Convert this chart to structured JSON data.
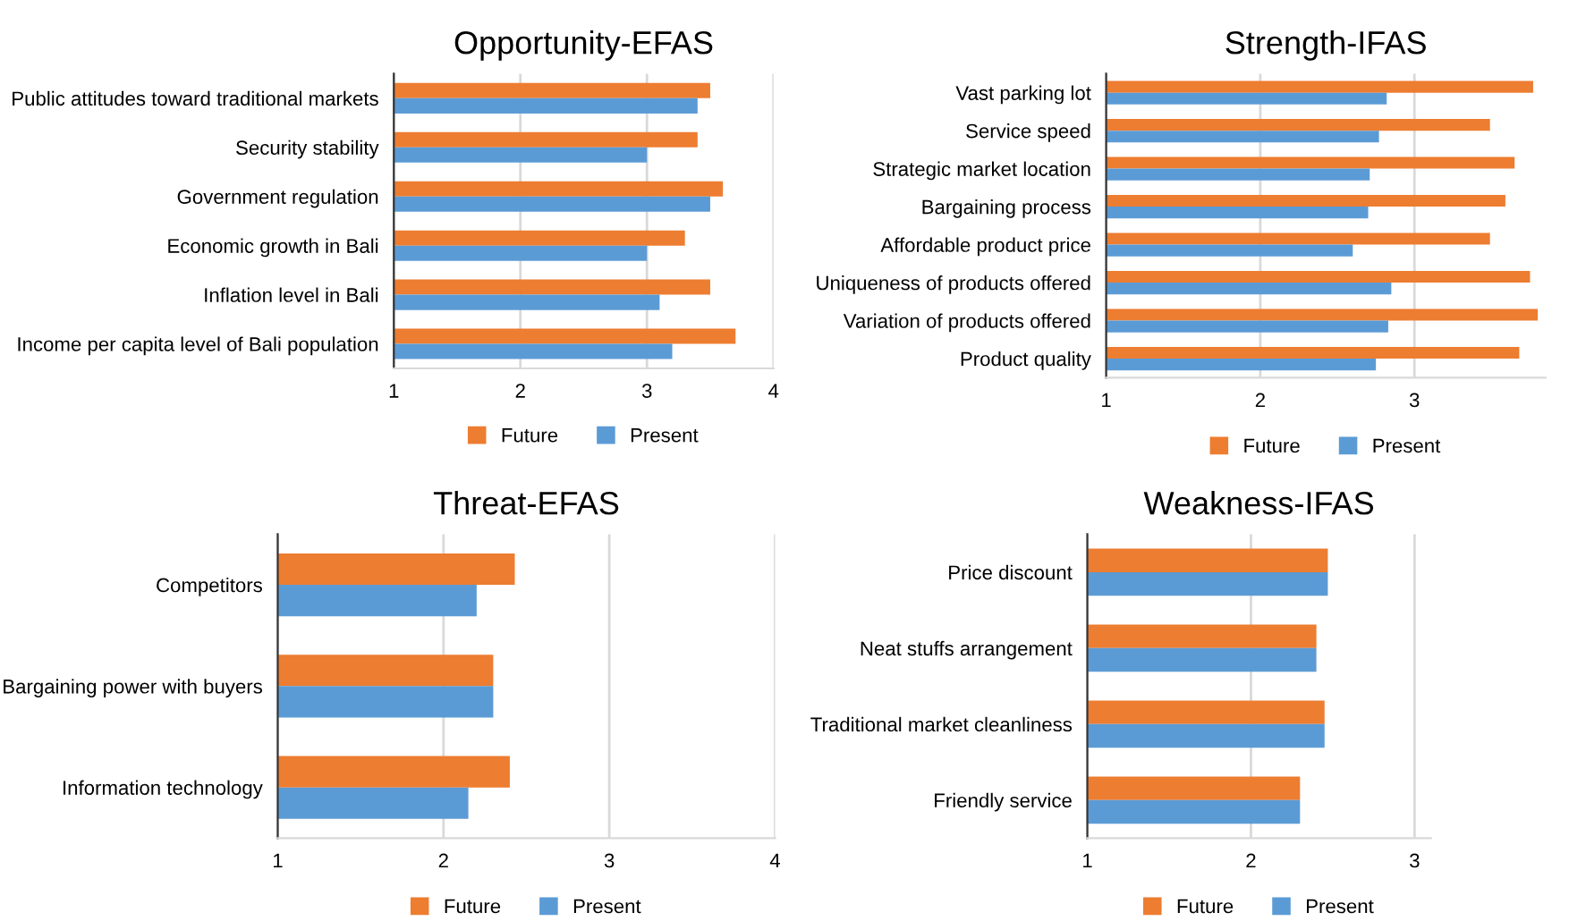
{
  "chart_data": [
    {
      "type": "bar",
      "orientation": "horizontal",
      "title": "Opportunity-EFAS",
      "categories": [
        "Public attitudes toward traditional markets",
        "Security stability",
        "Government regulation",
        "Economic growth in Bali",
        "Inflation level in Bali",
        "Income per capita level of Bali population"
      ],
      "series": [
        {
          "name": "Future",
          "color": "#ed7d31",
          "values": [
            3.5,
            3.4,
            3.6,
            3.3,
            3.5,
            3.7
          ]
        },
        {
          "name": "Present",
          "color": "#5b9bd5",
          "values": [
            3.4,
            3.0,
            3.5,
            3.0,
            3.1,
            3.2
          ]
        }
      ],
      "xlim": [
        1,
        4
      ],
      "xticks": [
        1,
        2,
        3,
        4
      ],
      "grid": "x",
      "legend": "bottom"
    },
    {
      "type": "bar",
      "orientation": "horizontal",
      "title": "Strength-IFAS",
      "categories": [
        "Vast parking lot",
        "Service speed",
        "Strategic market location",
        "Bargaining process",
        "Affordable product price",
        "Uniqueness of products offered",
        "Variation of products offered",
        "Product quality"
      ],
      "series": [
        {
          "name": "Future",
          "color": "#ed7d31",
          "values": [
            3.77,
            3.49,
            3.65,
            3.59,
            3.49,
            3.75,
            3.8,
            3.68
          ]
        },
        {
          "name": "Present",
          "color": "#5b9bd5",
          "values": [
            2.82,
            2.77,
            2.71,
            2.7,
            2.6,
            2.85,
            2.83,
            2.75
          ]
        }
      ],
      "xlim": [
        1,
        3.85
      ],
      "xticks": [
        1,
        2,
        3
      ],
      "grid": "x",
      "legend": "bottom"
    },
    {
      "type": "bar",
      "orientation": "horizontal",
      "title": "Threat-EFAS",
      "categories": [
        "Competitors",
        "Bargaining power with buyers",
        "Information technology"
      ],
      "series": [
        {
          "name": "Future",
          "color": "#ed7d31",
          "values": [
            2.43,
            2.3,
            2.4
          ]
        },
        {
          "name": "Present",
          "color": "#5b9bd5",
          "values": [
            2.2,
            2.3,
            2.15
          ]
        }
      ],
      "xlim": [
        1,
        4
      ],
      "xticks": [
        1,
        2,
        3,
        4
      ],
      "grid": "x",
      "legend": "bottom"
    },
    {
      "type": "bar",
      "orientation": "horizontal",
      "title": "Weakness-IFAS",
      "categories": [
        "Price discount",
        "Neat stuffs arrangement",
        "Traditional market cleanliness",
        "Friendly service"
      ],
      "series": [
        {
          "name": "Future",
          "color": "#ed7d31",
          "values": [
            2.47,
            2.4,
            2.45,
            2.3
          ]
        },
        {
          "name": "Present",
          "color": "#5b9bd5",
          "values": [
            2.47,
            2.4,
            2.45,
            2.3
          ]
        }
      ],
      "xlim": [
        1,
        3.1
      ],
      "xticks": [
        1,
        2,
        3
      ],
      "grid": "x",
      "legend": "bottom"
    }
  ]
}
